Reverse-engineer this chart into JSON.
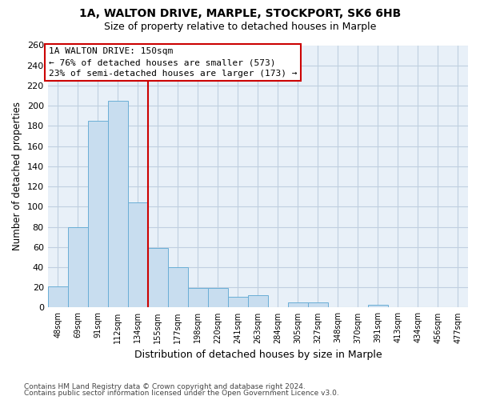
{
  "title1": "1A, WALTON DRIVE, MARPLE, STOCKPORT, SK6 6HB",
  "title2": "Size of property relative to detached houses in Marple",
  "xlabel": "Distribution of detached houses by size in Marple",
  "ylabel": "Number of detached properties",
  "bar_labels": [
    "48sqm",
    "69sqm",
    "91sqm",
    "112sqm",
    "134sqm",
    "155sqm",
    "177sqm",
    "198sqm",
    "220sqm",
    "241sqm",
    "263sqm",
    "284sqm",
    "305sqm",
    "327sqm",
    "348sqm",
    "370sqm",
    "391sqm",
    "413sqm",
    "434sqm",
    "456sqm",
    "477sqm"
  ],
  "bar_values": [
    21,
    80,
    185,
    205,
    104,
    59,
    40,
    19,
    19,
    11,
    12,
    0,
    5,
    5,
    0,
    0,
    3,
    0,
    0,
    0,
    0
  ],
  "bar_color": "#c8ddef",
  "bar_edge_color": "#6aaed6",
  "vline_x_label": "155sqm",
  "vline_color": "#cc0000",
  "annotation_title": "1A WALTON DRIVE: 150sqm",
  "annotation_line1": "← 76% of detached houses are smaller (573)",
  "annotation_line2": "23% of semi-detached houses are larger (173) →",
  "annotation_box_color": "#ffffff",
  "annotation_box_edge": "#cc0000",
  "ylim": [
    0,
    260
  ],
  "yticks": [
    0,
    20,
    40,
    60,
    80,
    100,
    120,
    140,
    160,
    180,
    200,
    220,
    240,
    260
  ],
  "footer1": "Contains HM Land Registry data © Crown copyright and database right 2024.",
  "footer2": "Contains public sector information licensed under the Open Government Licence v3.0.",
  "bg_color": "#ffffff",
  "plot_bg_color": "#e8f0f8",
  "grid_color": "#c0cfe0"
}
